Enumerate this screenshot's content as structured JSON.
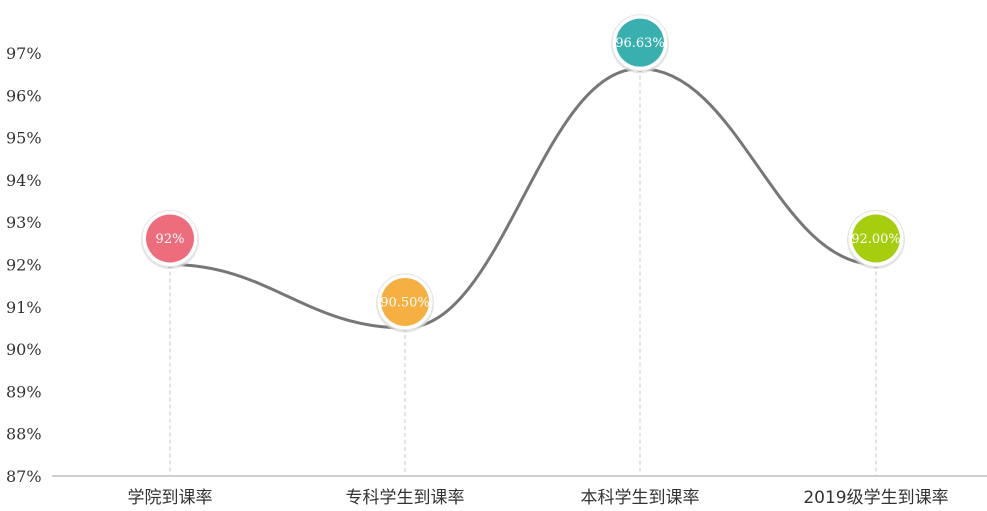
{
  "chart_data": {
    "type": "line",
    "smooth": true,
    "categories": [
      "学院到课率",
      "专科学生到课率",
      "本科学生到课率",
      "2019级学生到课率"
    ],
    "values": [
      92,
      90.5,
      96.63,
      92
    ],
    "data_labels": [
      "92%",
      "90.50%",
      "96.63%",
      "92.00%"
    ],
    "y_ticks": [
      "87%",
      "88%",
      "89%",
      "90%",
      "91%",
      "92%",
      "93%",
      "94%",
      "95%",
      "96%",
      "97%"
    ],
    "ylim": [
      87,
      97
    ],
    "line_color": "#777777",
    "marker_colors": [
      "#ee6d7d",
      "#f5b041",
      "#3aafb0",
      "#a6ce0f"
    ],
    "grid": false
  }
}
